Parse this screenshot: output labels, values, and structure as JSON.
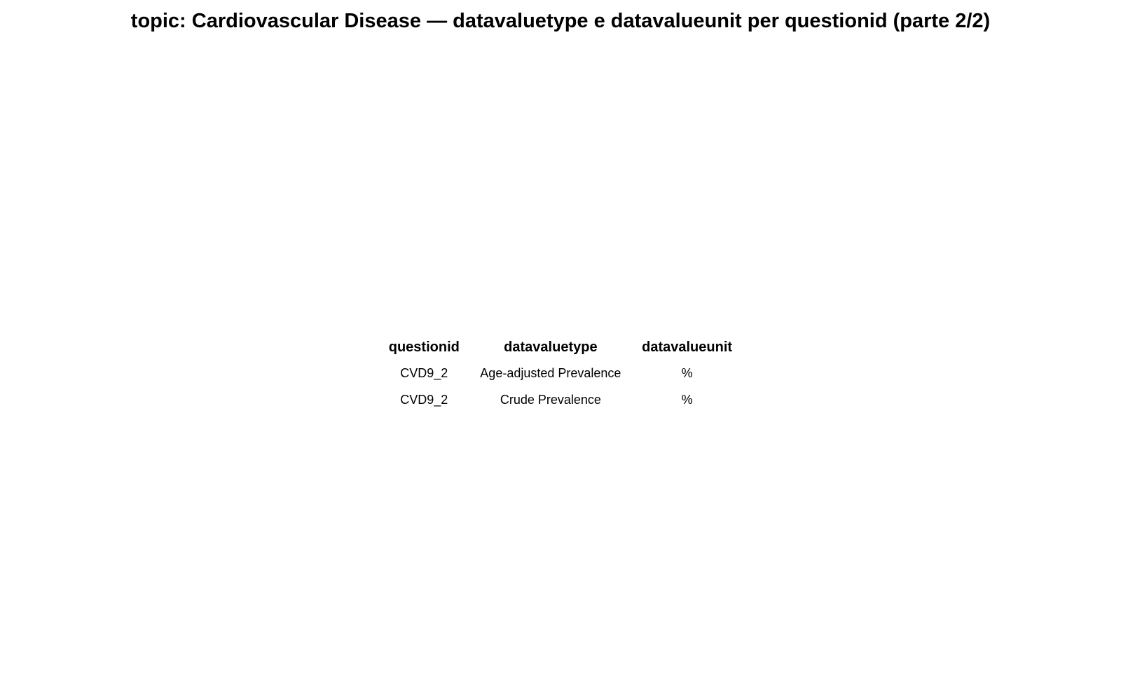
{
  "chart_data": {
    "type": "table",
    "title": "topic: Cardiovascular Disease — datavaluetype e datavalueunit per questionid (parte 2/2)",
    "columns": [
      "questionid",
      "datavaluetype",
      "datavalueunit"
    ],
    "rows": [
      [
        "CVD9_2",
        "Age-adjusted Prevalence",
        "%"
      ],
      [
        "CVD9_2",
        "Crude Prevalence",
        "%"
      ]
    ]
  }
}
